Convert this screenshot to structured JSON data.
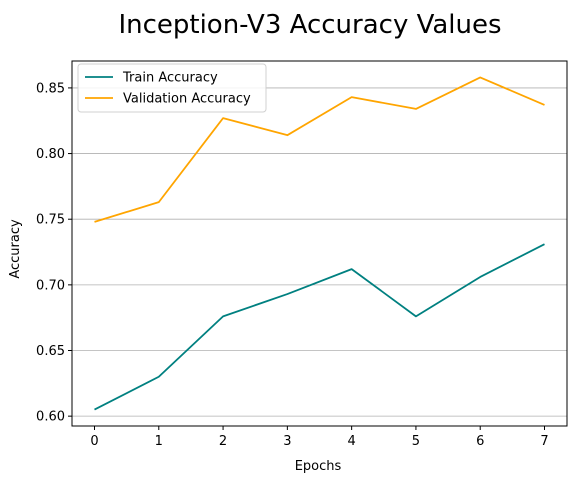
{
  "chart_data": {
    "type": "line",
    "title": "Inception-V3 Accuracy Values",
    "xlabel": "Epochs",
    "ylabel": "Accuracy",
    "x": [
      0,
      1,
      2,
      3,
      4,
      5,
      6,
      7
    ],
    "xticks": [
      "0",
      "1",
      "2",
      "3",
      "4",
      "5",
      "6",
      "7"
    ],
    "yticks": [
      "0.60",
      "0.65",
      "0.70",
      "0.75",
      "0.80",
      "0.85"
    ],
    "xlim": [
      -0.35,
      7.35
    ],
    "ylim": [
      0.5925,
      0.8705
    ],
    "grid": "y-axis only",
    "legend_position": "top-left",
    "series": [
      {
        "name": "Train Accuracy",
        "color": "#008080",
        "values": [
          0.605,
          0.63,
          0.676,
          0.693,
          0.712,
          0.676,
          0.706,
          0.731
        ]
      },
      {
        "name": "Validation Accuracy",
        "color": "#FFA500",
        "values": [
          0.748,
          0.763,
          0.827,
          0.814,
          0.843,
          0.834,
          0.858,
          0.837
        ]
      }
    ]
  }
}
